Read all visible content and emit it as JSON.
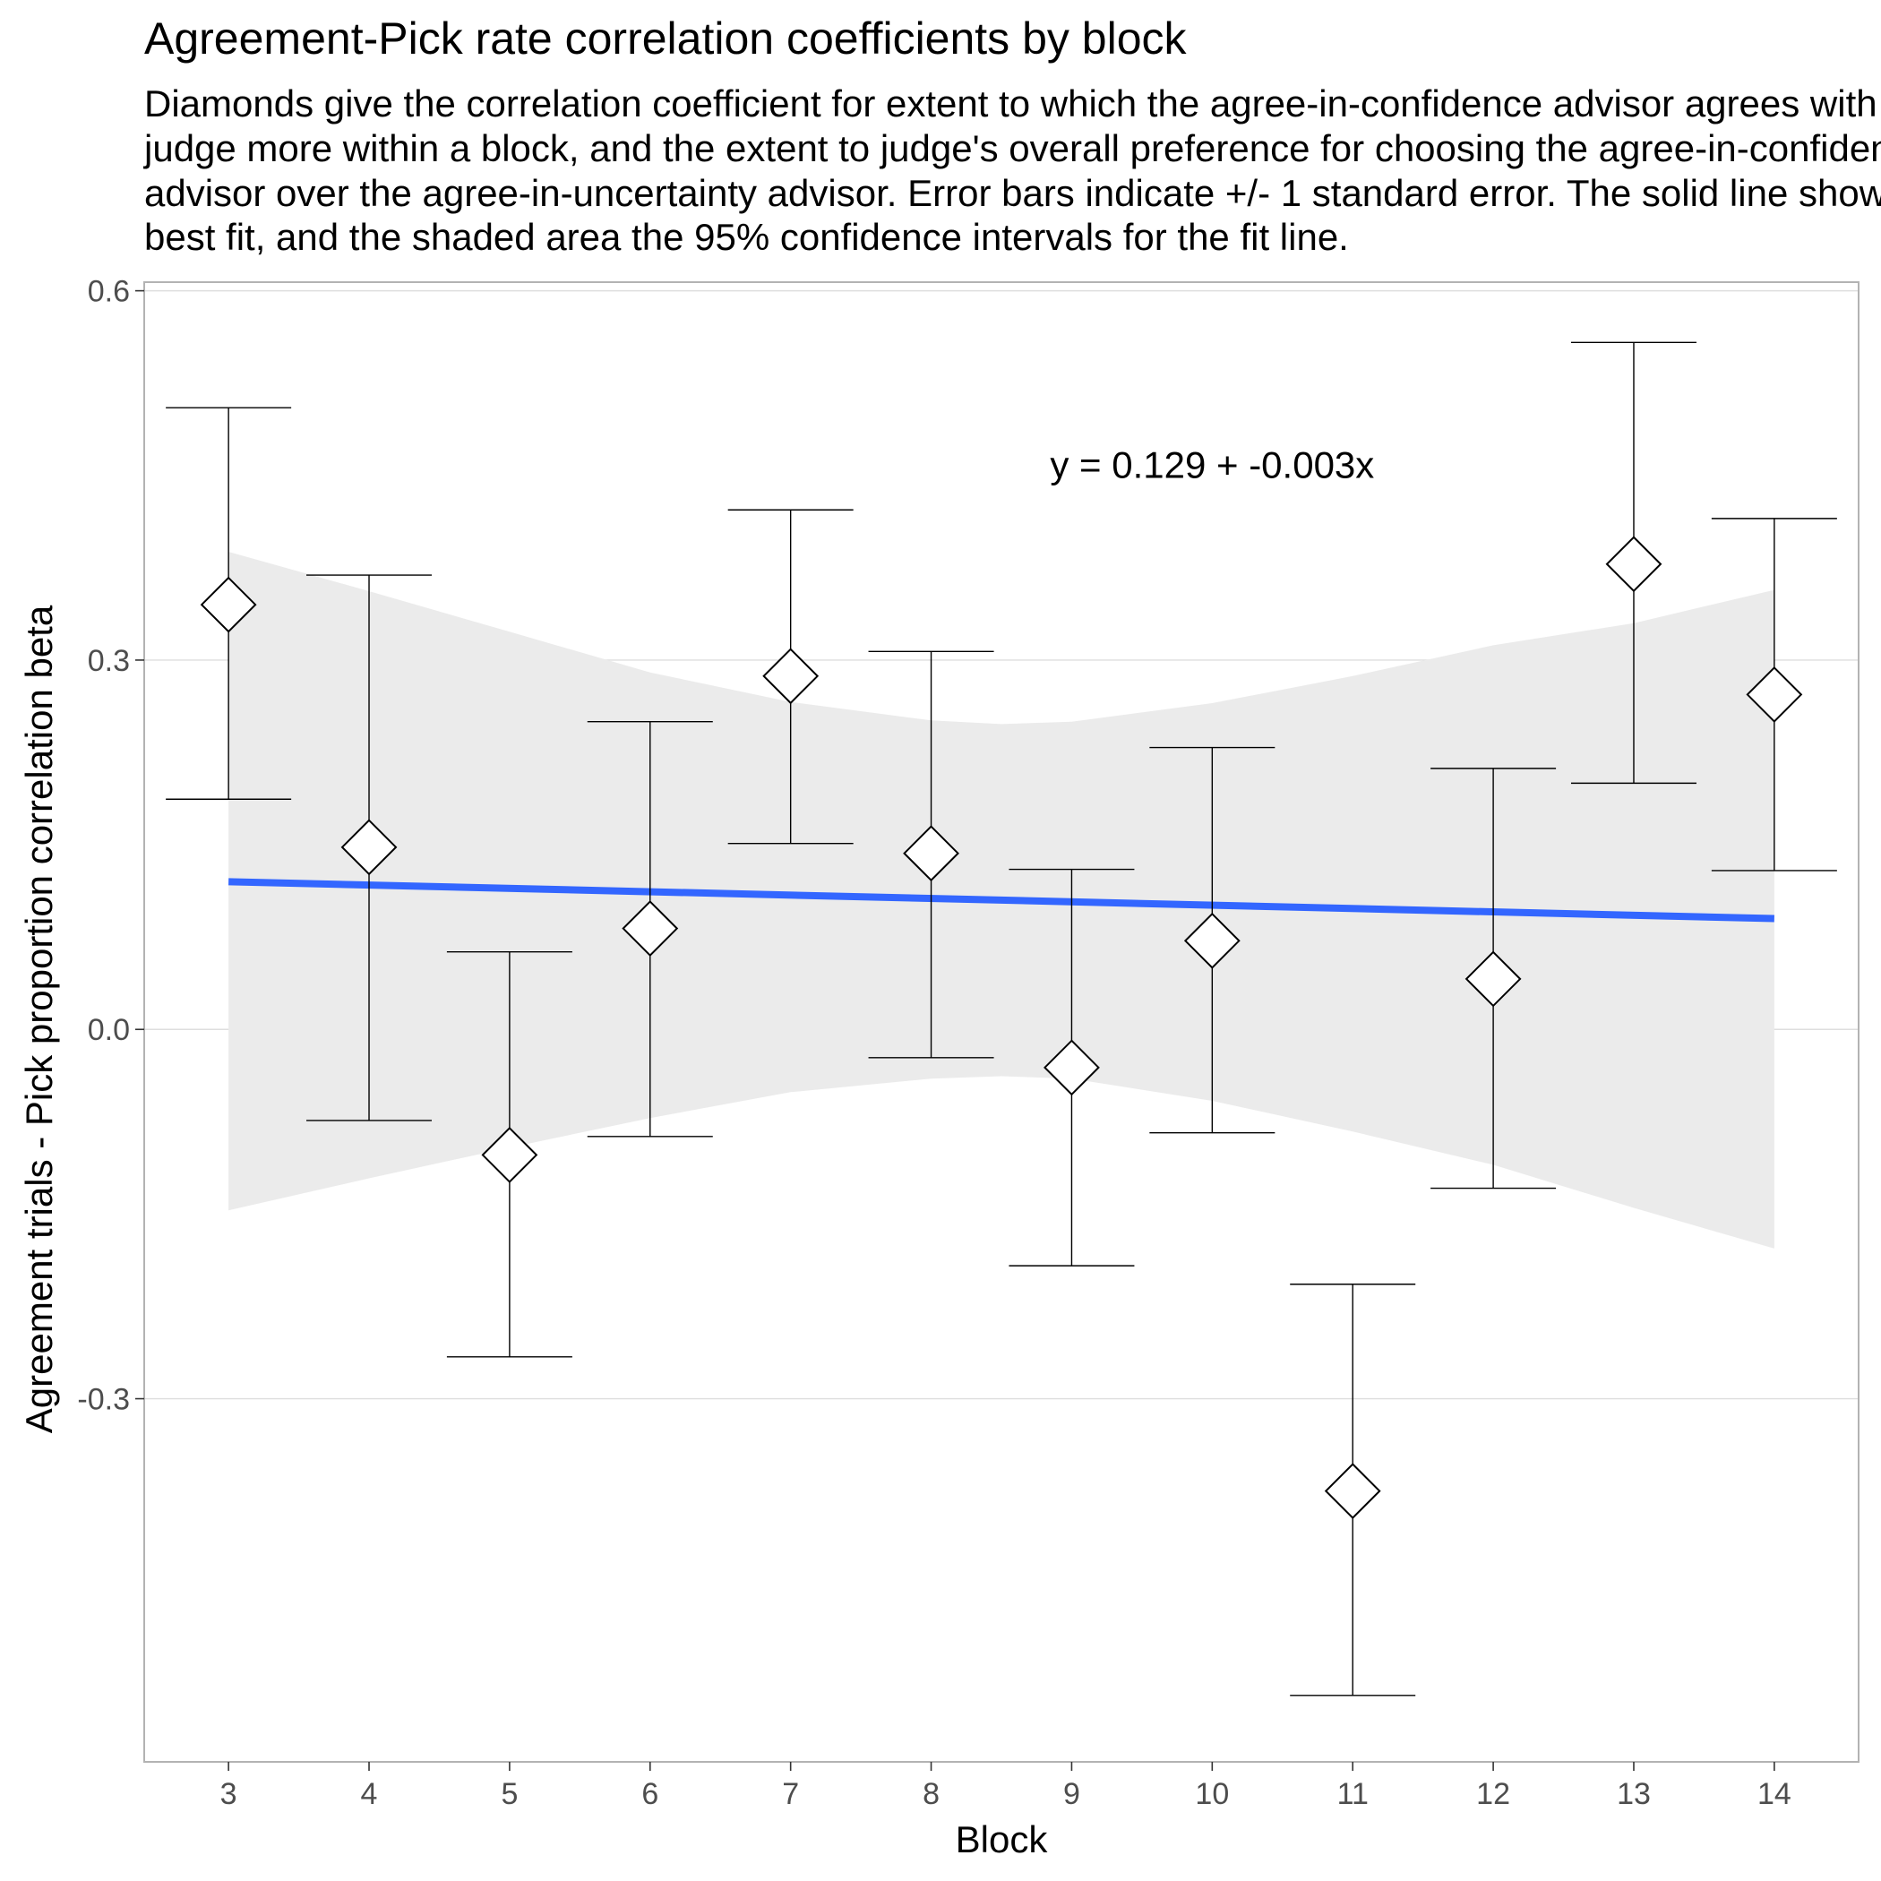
{
  "chart_data": {
    "type": "scatter",
    "title": "Agreement-Pick rate correlation coefficients by block",
    "subtitle": [
      "Diamonds give the correlation coefficient for extent to which the agree-in-confidence advisor agrees with the",
      "judge more within a block, and the extent to judge's overall preference for choosing the agree-in-confidence",
      "advisor over the agree-in-uncertainty advisor. Error bars indicate +/- 1 standard error. The solid line shows the",
      "best fit, and the shaded area the 95% confidence intervals for the fit line."
    ],
    "xlabel": "Block",
    "ylabel": "Agreement trials - Pick proportion correlation beta",
    "x": [
      3,
      4,
      5,
      6,
      7,
      8,
      9,
      10,
      11,
      12,
      13,
      14
    ],
    "x_ticks": [
      "3",
      "4",
      "5",
      "6",
      "7",
      "8",
      "9",
      "10",
      "11",
      "12",
      "13",
      "14"
    ],
    "y_ticks": [
      "0.6",
      "0.3",
      "0.0",
      "-0.3"
    ],
    "y_tick_values": [
      0.6,
      0.3,
      0.0,
      -0.3
    ],
    "points": [
      {
        "x": 3,
        "y": 0.345,
        "lo": 0.187,
        "hi": 0.505
      },
      {
        "x": 4,
        "y": 0.148,
        "lo": -0.074,
        "hi": 0.369
      },
      {
        "x": 5,
        "y": -0.102,
        "lo": -0.266,
        "hi": 0.063
      },
      {
        "x": 6,
        "y": 0.082,
        "lo": -0.087,
        "hi": 0.25
      },
      {
        "x": 7,
        "y": 0.287,
        "lo": 0.151,
        "hi": 0.422
      },
      {
        "x": 8,
        "y": 0.143,
        "lo": -0.023,
        "hi": 0.307
      },
      {
        "x": 9,
        "y": -0.031,
        "lo": -0.192,
        "hi": 0.13
      },
      {
        "x": 10,
        "y": 0.072,
        "lo": -0.084,
        "hi": 0.229
      },
      {
        "x": 11,
        "y": -0.375,
        "lo": -0.541,
        "hi": -0.207
      },
      {
        "x": 12,
        "y": 0.041,
        "lo": -0.129,
        "hi": 0.212
      },
      {
        "x": 13,
        "y": 0.378,
        "lo": 0.2,
        "hi": 0.558
      },
      {
        "x": 14,
        "y": 0.272,
        "lo": 0.129,
        "hi": 0.415
      }
    ],
    "fit_line": {
      "x": [
        3,
        14
      ],
      "y": [
        0.12,
        0.09
      ],
      "color": "#3366ff"
    },
    "confidence_band": {
      "x": [
        3,
        4,
        5,
        6,
        7,
        8,
        8.5,
        9,
        10,
        11,
        12,
        13,
        14
      ],
      "lo": [
        -0.147,
        -0.121,
        -0.096,
        -0.072,
        -0.051,
        -0.04,
        -0.038,
        -0.04,
        -0.058,
        -0.083,
        -0.11,
        -0.145,
        -0.178
      ],
      "hi": [
        0.388,
        0.356,
        0.323,
        0.29,
        0.266,
        0.251,
        0.248,
        0.25,
        0.265,
        0.287,
        0.312,
        0.33,
        0.357
      ]
    },
    "annotation": "y = 0.129 + -0.003x",
    "annotation_x": 10.0,
    "annotation_y": 0.448,
    "xlim": [
      2.4,
      14.6
    ],
    "ylim": [
      -0.595,
      0.607
    ],
    "grid": "horizontal",
    "colors": {
      "band": "#ebebeb",
      "grid": "#dedede",
      "panel_border": "#b3b3b3"
    }
  }
}
